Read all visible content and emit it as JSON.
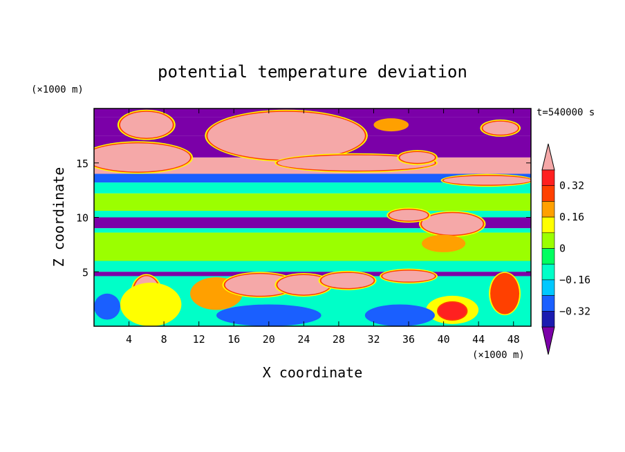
{
  "chart_data": {
    "type": "heatmap",
    "title": "potential temperature deviation",
    "xlabel": "X coordinate",
    "ylabel": "Z coordinate",
    "x_unit": "(×1000 m)",
    "y_unit": "(×1000 m)",
    "time_label": "t=540000 s",
    "xlim": [
      0,
      50
    ],
    "ylim": [
      0,
      20
    ],
    "x_ticks": [
      4,
      8,
      12,
      16,
      20,
      24,
      28,
      32,
      36,
      40,
      44,
      48
    ],
    "y_ticks": [
      5,
      10,
      15
    ],
    "grid": false,
    "colorbar": {
      "levels": [
        -0.4,
        -0.32,
        -0.24,
        -0.16,
        -0.08,
        0,
        0.08,
        0.16,
        0.24,
        0.32,
        0.4
      ],
      "tick_labels": [
        "0.32",
        "0.16",
        "0",
        "−0.16",
        "−0.32"
      ],
      "tick_values": [
        0.32,
        0.16,
        0,
        -0.16,
        -0.32
      ],
      "colors": [
        "#7b00a8",
        "#1b1bb0",
        "#1a5fff",
        "#00c8ff",
        "#00ffc8",
        "#00ff60",
        "#9bff00",
        "#ffff00",
        "#ffa000",
        "#ff4000",
        "#ff2020",
        "#f5a8a8"
      ],
      "extend": "both"
    },
    "bands": [
      {
        "z": [
          19.2,
          20.0
        ],
        "value": -0.45
      },
      {
        "z": [
          17.5,
          19.2
        ],
        "value": -0.45
      },
      {
        "z": [
          15.5,
          17.5
        ],
        "value": -0.45
      },
      {
        "z": [
          14.0,
          15.5
        ],
        "value": 0.45
      },
      {
        "z": [
          13.2,
          14.0
        ],
        "value": -0.3
      },
      {
        "z": [
          12.2,
          13.2
        ],
        "value": -0.12
      },
      {
        "z": [
          10.6,
          12.2
        ],
        "value": 0.04
      },
      {
        "z": [
          10.0,
          10.6
        ],
        "value": -0.1
      },
      {
        "z": [
          9.0,
          10.0
        ],
        "value": -0.45
      },
      {
        "z": [
          8.6,
          9.0
        ],
        "value": -0.12
      },
      {
        "z": [
          6.0,
          8.6
        ],
        "value": 0.03
      },
      {
        "z": [
          5.0,
          6.0
        ],
        "value": -0.1
      },
      {
        "z": [
          4.6,
          5.0
        ],
        "value": -0.45
      },
      {
        "z": [
          0.0,
          4.6
        ],
        "value": -0.1
      }
    ],
    "features": [
      {
        "x": 6,
        "z": 18.5,
        "rx": 3,
        "rz": 1.2,
        "value": 0.45
      },
      {
        "x": 22,
        "z": 17.5,
        "rx": 9,
        "rz": 2.2,
        "value": 0.45
      },
      {
        "x": 34,
        "z": 18.5,
        "rx": 2,
        "rz": 0.6,
        "value": 0.2
      },
      {
        "x": 46.5,
        "z": 18.2,
        "rx": 2,
        "rz": 0.6,
        "value": 0.45
      },
      {
        "x": 5,
        "z": 15.5,
        "rx": 6,
        "rz": 1.3,
        "value": 0.45
      },
      {
        "x": 30,
        "z": 15.0,
        "rx": 9,
        "rz": 0.7,
        "value": 0.45
      },
      {
        "x": 37,
        "z": 15.5,
        "rx": 2,
        "rz": 0.5,
        "value": 0.45
      },
      {
        "x": 45,
        "z": 13.4,
        "rx": 5,
        "rz": 0.4,
        "value": 0.45
      },
      {
        "x": 41,
        "z": 9.4,
        "rx": 3.5,
        "rz": 1.0,
        "value": 0.45
      },
      {
        "x": 36,
        "z": 10.2,
        "rx": 2.2,
        "rz": 0.5,
        "value": 0.45
      },
      {
        "x": 40,
        "z": 7.6,
        "rx": 2.5,
        "rz": 0.8,
        "value": 0.2
      },
      {
        "x": 6,
        "z": 3.0,
        "rx": 1.5,
        "rz": 1.6,
        "value": 0.45
      },
      {
        "x": 6.5,
        "z": 2.0,
        "rx": 3.5,
        "rz": 2.0,
        "value": 0.1
      },
      {
        "x": 1.5,
        "z": 1.8,
        "rx": 1.5,
        "rz": 1.2,
        "value": -0.3
      },
      {
        "x": 14,
        "z": 3.0,
        "rx": 3,
        "rz": 1.5,
        "value": 0.2
      },
      {
        "x": 19,
        "z": 3.8,
        "rx": 4,
        "rz": 1.0,
        "value": 0.45
      },
      {
        "x": 24,
        "z": 3.8,
        "rx": 3,
        "rz": 0.9,
        "value": 0.45
      },
      {
        "x": 29,
        "z": 4.2,
        "rx": 3,
        "rz": 0.7,
        "value": 0.45
      },
      {
        "x": 36,
        "z": 4.6,
        "rx": 3,
        "rz": 0.5,
        "value": 0.45
      },
      {
        "x": 20,
        "z": 1.0,
        "rx": 6,
        "rz": 1.0,
        "value": -0.3
      },
      {
        "x": 41,
        "z": 1.5,
        "rx": 3,
        "rz": 1.3,
        "value": 0.1
      },
      {
        "x": 41,
        "z": 1.4,
        "rx": 1.6,
        "rz": 0.8,
        "value": 0.35
      },
      {
        "x": 47,
        "z": 3.0,
        "rx": 1.5,
        "rz": 1.8,
        "value": 0.3
      },
      {
        "x": 35,
        "z": 1.0,
        "rx": 4,
        "rz": 1.0,
        "value": -0.3
      }
    ]
  }
}
